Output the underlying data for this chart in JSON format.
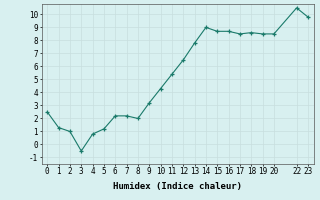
{
  "x": [
    0,
    1,
    2,
    3,
    4,
    5,
    6,
    7,
    8,
    9,
    10,
    11,
    12,
    13,
    14,
    15,
    16,
    17,
    18,
    19,
    20,
    22,
    23
  ],
  "y": [
    2.5,
    1.3,
    1.0,
    -0.5,
    0.8,
    1.2,
    2.2,
    2.2,
    2.0,
    3.2,
    4.3,
    5.4,
    6.5,
    7.8,
    9.0,
    8.7,
    8.7,
    8.5,
    8.6,
    8.5,
    8.5,
    10.5,
    9.8
  ],
  "xticks": [
    0,
    1,
    2,
    3,
    4,
    5,
    6,
    7,
    8,
    9,
    10,
    11,
    12,
    13,
    14,
    15,
    16,
    17,
    18,
    19,
    20,
    22,
    23
  ],
  "xtick_labels": [
    "0",
    "1",
    "2",
    "3",
    "4",
    "5",
    "6",
    "7",
    "8",
    "9",
    "10",
    "11",
    "12",
    "13",
    "14",
    "15",
    "16",
    "17",
    "18",
    "19",
    "20",
    "22",
    "23"
  ],
  "yticks": [
    -1,
    0,
    1,
    2,
    3,
    4,
    5,
    6,
    7,
    8,
    9,
    10
  ],
  "xlim": [
    -0.5,
    23.5
  ],
  "ylim": [
    -1.5,
    10.8
  ],
  "xlabel": "Humidex (Indice chaleur)",
  "line_color": "#1a7a6a",
  "marker": "+",
  "bg_color": "#d8f0f0",
  "grid_color": "#c8dede",
  "tick_fontsize": 5.5,
  "xlabel_fontsize": 6.5
}
